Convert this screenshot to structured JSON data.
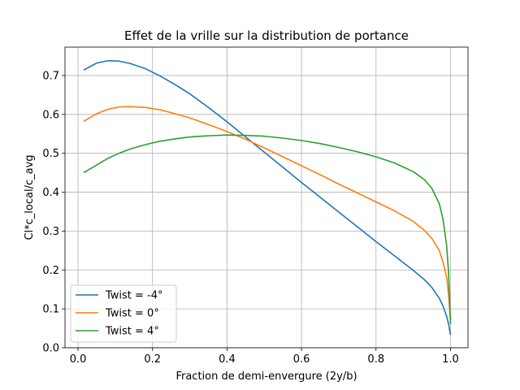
{
  "chart_data": {
    "type": "line",
    "title": "Effet de la vrille sur la distribution de portance",
    "xlabel": "Fraction de demi-envergure (2y/b)",
    "ylabel": "Cl*c_local/c_avg",
    "xlim": [
      -0.035,
      1.047
    ],
    "ylim": [
      0.0,
      0.773
    ],
    "xticks": [
      0.0,
      0.2,
      0.4,
      0.6,
      0.8,
      1.0
    ],
    "xtick_labels": [
      "0.0",
      "0.2",
      "0.4",
      "0.6",
      "0.8",
      "1.0"
    ],
    "yticks": [
      0.0,
      0.1,
      0.2,
      0.3,
      0.4,
      0.5,
      0.6,
      0.7
    ],
    "ytick_labels": [
      "0.0",
      "0.1",
      "0.2",
      "0.3",
      "0.4",
      "0.5",
      "0.6",
      "0.7"
    ],
    "grid": true,
    "legend_position": "lower-left",
    "series": [
      {
        "name": "Twist = -4°",
        "color": "#1f77b4",
        "x": [
          0.015,
          0.05,
          0.08,
          0.11,
          0.14,
          0.18,
          0.22,
          0.26,
          0.3,
          0.35,
          0.4,
          0.45,
          0.5,
          0.55,
          0.6,
          0.65,
          0.7,
          0.75,
          0.8,
          0.85,
          0.9,
          0.93,
          0.95,
          0.97,
          0.98,
          0.99,
          0.995,
          1.0
        ],
        "y": [
          0.714,
          0.732,
          0.738,
          0.737,
          0.731,
          0.718,
          0.699,
          0.677,
          0.653,
          0.618,
          0.581,
          0.542,
          0.503,
          0.464,
          0.425,
          0.387,
          0.349,
          0.311,
          0.273,
          0.236,
          0.199,
          0.175,
          0.155,
          0.127,
          0.107,
          0.08,
          0.06,
          0.033
        ]
      },
      {
        "name": "Twist = 0°",
        "color": "#ff7f0e",
        "x": [
          0.015,
          0.05,
          0.08,
          0.11,
          0.14,
          0.18,
          0.22,
          0.26,
          0.3,
          0.35,
          0.4,
          0.45,
          0.5,
          0.55,
          0.6,
          0.65,
          0.7,
          0.75,
          0.8,
          0.85,
          0.9,
          0.93,
          0.95,
          0.97,
          0.98,
          0.99,
          0.995,
          1.0
        ],
        "y": [
          0.582,
          0.602,
          0.613,
          0.619,
          0.62,
          0.618,
          0.612,
          0.602,
          0.591,
          0.574,
          0.556,
          0.536,
          0.514,
          0.491,
          0.468,
          0.445,
          0.421,
          0.398,
          0.375,
          0.352,
          0.325,
          0.302,
          0.281,
          0.25,
          0.22,
          0.18,
          0.135,
          0.07
        ]
      },
      {
        "name": "Twist = 4°",
        "color": "#2ca02c",
        "x": [
          0.015,
          0.05,
          0.08,
          0.11,
          0.14,
          0.18,
          0.22,
          0.26,
          0.3,
          0.35,
          0.4,
          0.45,
          0.5,
          0.55,
          0.6,
          0.65,
          0.7,
          0.75,
          0.8,
          0.85,
          0.9,
          0.93,
          0.95,
          0.97,
          0.98,
          0.99,
          0.995,
          1.0
        ],
        "y": [
          0.45,
          0.47,
          0.487,
          0.5,
          0.511,
          0.522,
          0.531,
          0.537,
          0.542,
          0.545,
          0.547,
          0.546,
          0.544,
          0.539,
          0.533,
          0.525,
          0.515,
          0.504,
          0.491,
          0.475,
          0.453,
          0.432,
          0.41,
          0.37,
          0.33,
          0.26,
          0.19,
          0.06
        ]
      }
    ]
  }
}
